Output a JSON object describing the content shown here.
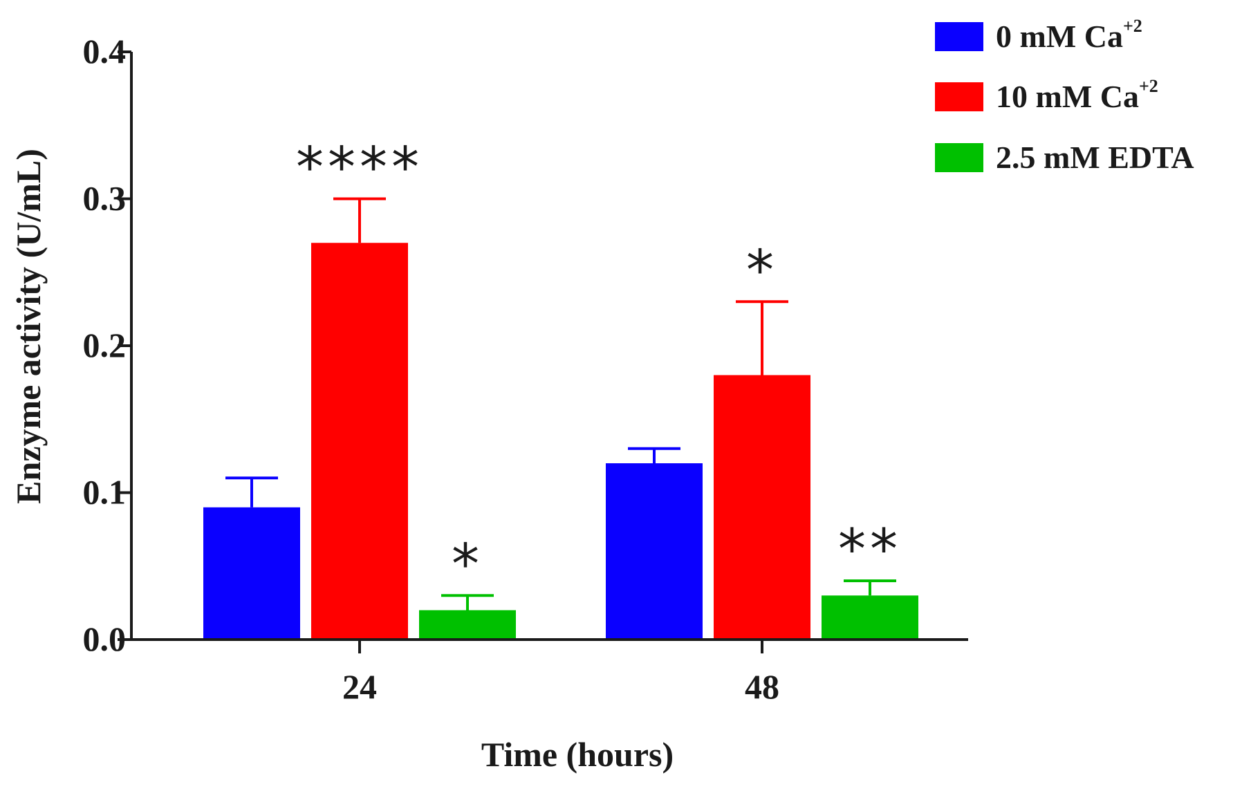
{
  "chart_data": {
    "type": "bar",
    "title": "",
    "xlabel": "Time (hours)",
    "ylabel": "Enzyme activity (U/mL)",
    "ylim": [
      0,
      0.4
    ],
    "yticks": [
      "0.0",
      "0.1",
      "0.2",
      "0.3",
      "0.4"
    ],
    "ytick_values": [
      0,
      0.1,
      0.2,
      0.3,
      0.4
    ],
    "categories": [
      "24",
      "48"
    ],
    "grid": false,
    "legend_position": "top-right",
    "series": [
      {
        "name": "0 mM Ca",
        "superscript": "+2",
        "color": "#0a00ff",
        "values": [
          0.09,
          0.12
        ],
        "errors": [
          0.02,
          0.01
        ],
        "significance": [
          "",
          ""
        ]
      },
      {
        "name": "10 mM Ca",
        "superscript": "+2",
        "color": "#ff0000",
        "values": [
          0.27,
          0.18
        ],
        "errors": [
          0.03,
          0.05
        ],
        "significance": [
          "****",
          "*"
        ]
      },
      {
        "name": "2.5 mM EDTA",
        "superscript": "",
        "color": "#00c000",
        "values": [
          0.02,
          0.03
        ],
        "errors": [
          0.01,
          0.01
        ],
        "significance": [
          "*",
          "**"
        ]
      }
    ]
  }
}
